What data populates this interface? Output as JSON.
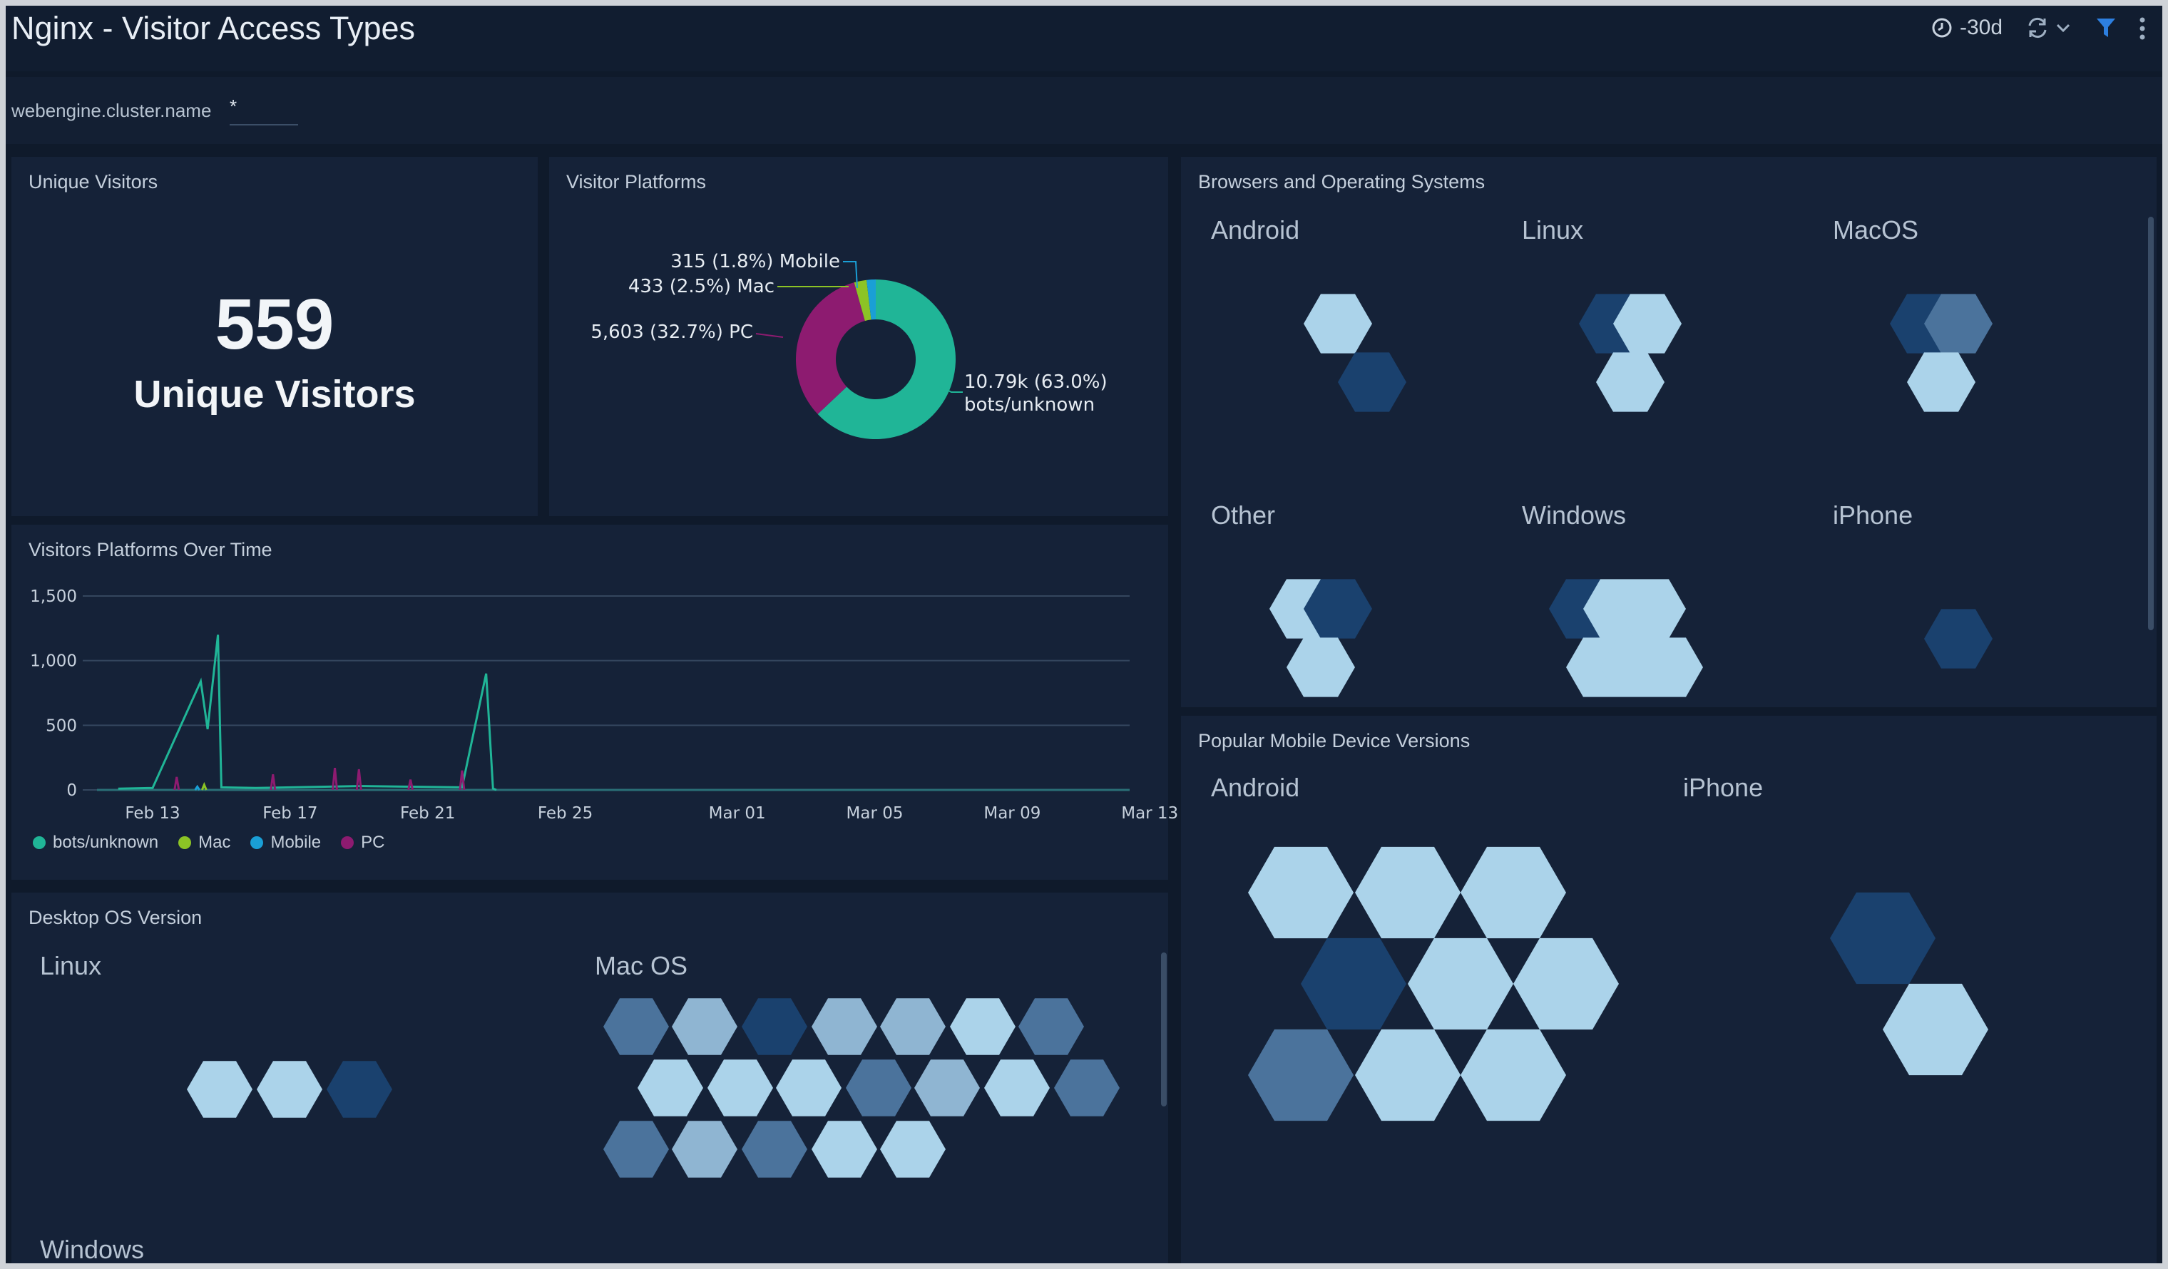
{
  "header": {
    "title": "Nginx - Visitor Access Types",
    "time_range": "-30d",
    "icons": [
      "clock-icon",
      "refresh-icon",
      "chevron-down-icon",
      "filter-icon",
      "more-vertical-icon"
    ]
  },
  "filter": {
    "label": "webengine.cluster.name",
    "value": "*"
  },
  "panels": {
    "unique_visitors": {
      "title": "Unique Visitors",
      "value": "559",
      "label": "Unique Visitors"
    },
    "visitor_platforms": {
      "title": "Visitor Platforms",
      "labels": {
        "mobile": "315 (1.8%) Mobile",
        "mac": "433 (2.5%) Mac",
        "pc": "5,603 (32.7%) PC",
        "bots_line1": "10.79k (63.0%)",
        "bots_line2": "bots/unknown"
      }
    },
    "browsers_os": {
      "title": "Browsers and Operating Systems",
      "groups": [
        {
          "label": "Android"
        },
        {
          "label": "Linux"
        },
        {
          "label": "MacOS"
        },
        {
          "label": "Other"
        },
        {
          "label": "Windows"
        },
        {
          "label": "iPhone"
        }
      ]
    },
    "platforms_over_time": {
      "title": "Visitors Platforms Over Time"
    },
    "desktop_os": {
      "title": "Desktop OS Version",
      "groups": [
        {
          "label": "Linux"
        },
        {
          "label": "Mac OS"
        },
        {
          "label": "Windows"
        }
      ]
    },
    "mobile_versions": {
      "title": "Popular Mobile Device Versions",
      "groups": [
        {
          "label": "Android"
        },
        {
          "label": "iPhone"
        }
      ]
    }
  },
  "colors": {
    "bots_unknown": "#20b597",
    "mac": "#8cc425",
    "mobile": "#1a9fd6",
    "pc": "#8d1b70",
    "hex_light": "#abd3ea",
    "hex_dark": "#1a416e"
  },
  "chart_data": [
    {
      "type": "pie",
      "title": "Visitor Platforms",
      "categories": [
        "bots/unknown",
        "PC",
        "Mac",
        "Mobile"
      ],
      "values": [
        10790,
        5603,
        433,
        315
      ],
      "percent": [
        63.0,
        32.7,
        2.5,
        1.8
      ]
    },
    {
      "type": "line",
      "title": "Visitors Platforms Over Time",
      "ylim": [
        0,
        1500
      ],
      "y_ticks": [
        "1,500",
        "1,000",
        "500",
        "0"
      ],
      "x_ticks": [
        "Feb 13",
        "Feb 17",
        "Feb 21",
        "Feb 25",
        "Mar 01",
        "Mar 05",
        "Mar 09",
        "Mar 13"
      ],
      "legend_position": "bottom-left",
      "series": [
        {
          "name": "bots/unknown",
          "x": [
            "Feb 12",
            "Feb 13",
            "Feb 14.4",
            "Feb 14.6",
            "Feb 14.9",
            "Feb 15",
            "Feb 16",
            "Feb 19",
            "Feb 22",
            "Feb 22.7",
            "Feb 22.9",
            "Feb 23"
          ],
          "values": [
            10,
            15,
            840,
            470,
            1200,
            20,
            15,
            30,
            20,
            900,
            10,
            0
          ]
        },
        {
          "name": "Mac",
          "x": [
            "Feb 14.5"
          ],
          "values": [
            40
          ]
        },
        {
          "name": "Mobile",
          "x": [
            "Feb 14.3"
          ],
          "values": [
            25
          ]
        },
        {
          "name": "PC",
          "x": [
            "Feb 13.7",
            "Feb 16.5",
            "Feb 18.3",
            "Feb 19",
            "Feb 20.5",
            "Feb 22"
          ],
          "values": [
            100,
            120,
            170,
            160,
            80,
            150
          ]
        }
      ]
    }
  ]
}
